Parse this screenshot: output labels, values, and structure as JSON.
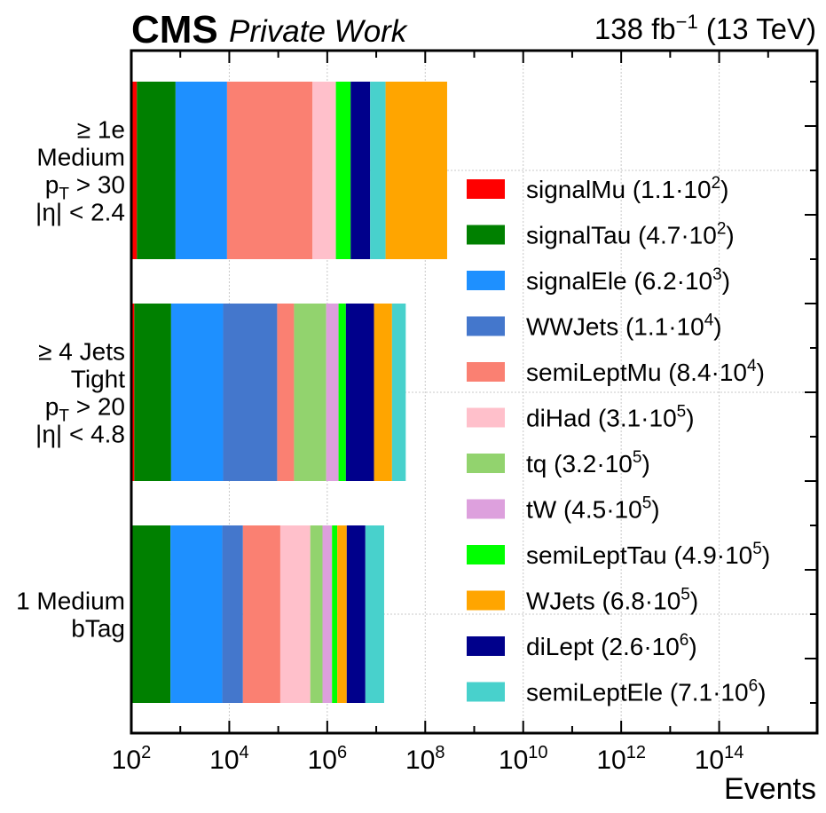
{
  "header": {
    "experiment": "CMS",
    "tag": "Private Work",
    "lumi_value": "138 fb",
    "lumi_exp": "−1",
    "energy": " (13 TeV)"
  },
  "chart_data": {
    "type": "bar",
    "orientation": "horizontal",
    "stacked": true,
    "xscale": "log",
    "xlabel": "Events",
    "xlim": [
      100,
      10000000000000000
    ],
    "xticks": [
      {
        "base": "10",
        "exp": "2",
        "value": 100
      },
      {
        "base": "10",
        "exp": "4",
        "value": 10000
      },
      {
        "base": "10",
        "exp": "6",
        "value": 1000000
      },
      {
        "base": "10",
        "exp": "8",
        "value": 100000000
      },
      {
        "base": "10",
        "exp": "10",
        "value": 10000000000
      },
      {
        "base": "10",
        "exp": "12",
        "value": 1000000000000
      },
      {
        "base": "10",
        "exp": "14",
        "value": 100000000000000
      }
    ],
    "grid": true,
    "legend_position": "right",
    "categories": [
      {
        "lines": [
          "≥ 1e",
          "Medium",
          "p_T > 30",
          "|η| < 2.4"
        ]
      },
      {
        "lines": [
          "≥ 4 Jets",
          "Tight",
          "p_T > 20",
          "|η| < 4.8"
        ]
      },
      {
        "lines": [
          "1 Medium",
          "bTag"
        ]
      }
    ],
    "series": [
      {
        "name": "signalMu",
        "label_value": "1.1",
        "label_exp": "2",
        "color": "#ff0000",
        "cumulative_edges": [
          130,
          115,
          105
        ]
      },
      {
        "name": "signalTau",
        "label_value": "4.7",
        "label_exp": "2",
        "color": "#008000",
        "cumulative_edges": [
          800,
          650,
          630
        ]
      },
      {
        "name": "signalEle",
        "label_value": "6.2",
        "label_exp": "3",
        "color": "#1e90ff",
        "cumulative_edges": [
          9000,
          7500,
          7200
        ]
      },
      {
        "name": "WWJets",
        "label_value": "1.1",
        "label_exp": "4",
        "color": "#4477cc",
        "cumulative_edges": [
          30000,
          95000,
          19000
        ]
      },
      {
        "name": "semiLeptMu",
        "label_value": "8.4",
        "label_exp": "4",
        "color": "#fa8072",
        "cumulative_edges": [
          500000,
          210000,
          110000
        ]
      },
      {
        "name": "diHad",
        "label_value": "3.1",
        "label_exp": "5",
        "color": "#ffc0cb",
        "cumulative_edges": [
          1500000,
          240000,
          450000
        ]
      },
      {
        "name": "tq",
        "label_value": "3.2",
        "label_exp": "5",
        "color": "#92d36e",
        "cumulative_edges": [
          1600000,
          950000,
          800000
        ]
      },
      {
        "name": "tW",
        "label_value": "4.5",
        "label_exp": "5",
        "color": "#dda0dd",
        "cumulative_edges": [
          1600000,
          1700000,
          1250000
        ]
      },
      {
        "name": "semiLeptTau",
        "label_value": "4.9",
        "label_exp": "5",
        "color": "#00ff00",
        "cumulative_edges": [
          3000000,
          2400000,
          1600000
        ]
      },
      {
        "name": "WJets",
        "label_value": "6.8",
        "label_exp": "5",
        "color": "#ffa500",
        "cumulative_edges": [
          280000000,
          21000000,
          2500000
        ]
      },
      {
        "name": "diLept",
        "label_value": "2.6",
        "label_exp": "6",
        "color": "#00008b",
        "cumulative_edges": [
          7500000,
          9000000,
          6000000
        ]
      },
      {
        "name": "semiLeptEle",
        "label_value": "7.1",
        "label_exp": "6",
        "color": "#48d1cc",
        "cumulative_edges": [
          15500000,
          40000000,
          14500000
        ]
      }
    ],
    "segment_order": [
      [
        "signalMu",
        "signalTau",
        "signalEle",
        "semiLeptMu",
        "WWJets",
        "diHad",
        "semiLeptTau",
        "tq",
        "diLept",
        "semiLeptEle",
        "WJets"
      ],
      [
        "signalMu",
        "signalTau",
        "signalEle",
        "WWJets",
        "semiLeptMu",
        "tq",
        "diHad",
        "tW",
        "semiLeptTau",
        "diLept",
        "WJets",
        "semiLeptEle"
      ],
      [
        "signalMu",
        "signalTau",
        "signalEle",
        "WWJets",
        "semiLeptMu",
        "diHad",
        "tq",
        "tW",
        "semiLeptTau",
        "WJets",
        "diLept",
        "semiLeptEle"
      ]
    ]
  }
}
